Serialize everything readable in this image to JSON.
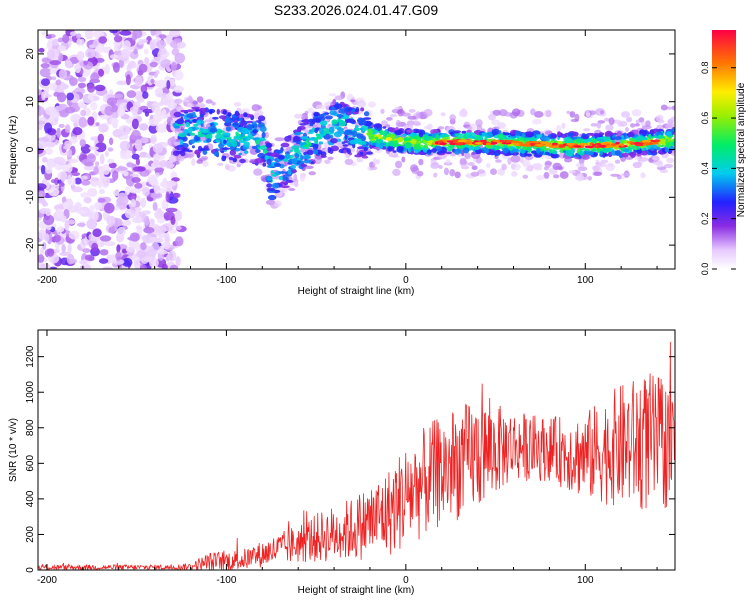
{
  "title": "S233.2026.024.01.47.G09",
  "chart_data": [
    {
      "type": "heatmap",
      "name": "spectrogram",
      "xlabel": "Height of straight line (km)",
      "ylabel": "Frequency (Hz)",
      "xlim": [
        -205,
        150
      ],
      "ylim": [
        -25,
        25
      ],
      "xticks": [
        -200,
        -100,
        0,
        100
      ],
      "yticks": [
        -20,
        -10,
        0,
        10,
        20
      ],
      "colorbar": {
        "label": "Normalized spectral amplitude",
        "range": [
          0,
          0.95
        ],
        "ticks": [
          0.0,
          0.2,
          0.4,
          0.6,
          0.8
        ]
      },
      "ridge": {
        "description_points_x": [
          -120,
          -100,
          -80,
          -75,
          -60,
          -40,
          -20,
          0,
          20,
          50,
          80,
          100,
          120,
          150
        ],
        "description_points_y": [
          4,
          3,
          2,
          -6,
          0,
          5,
          3,
          1.5,
          1.5,
          1.5,
          1.0,
          0.8,
          1.0,
          2.0
        ],
        "peak_amplitude_x_range": [
          -20,
          150
        ]
      }
    },
    {
      "type": "line",
      "name": "snr",
      "xlabel": "Height of straight line (km)",
      "ylabel": "SNR (10 * v/v)",
      "xlim": [
        -205,
        150
      ],
      "ylim": [
        0,
        1350
      ],
      "xticks": [
        -200,
        -100,
        0,
        100
      ],
      "yticks": [
        0,
        200,
        400,
        600,
        800,
        1000,
        1200
      ],
      "color": "#ee2222",
      "envelope_x": [
        -205,
        -130,
        -120,
        -110,
        -90,
        -70,
        -50,
        -30,
        -10,
        0,
        20,
        40,
        60,
        80,
        100,
        120,
        135,
        150
      ],
      "envelope_mean": [
        15,
        15,
        20,
        40,
        60,
        120,
        180,
        230,
        320,
        420,
        560,
        650,
        700,
        680,
        640,
        700,
        720,
        700
      ],
      "envelope_spread": [
        15,
        15,
        20,
        60,
        60,
        90,
        140,
        180,
        250,
        300,
        320,
        320,
        200,
        180,
        250,
        350,
        400,
        350
      ]
    }
  ]
}
